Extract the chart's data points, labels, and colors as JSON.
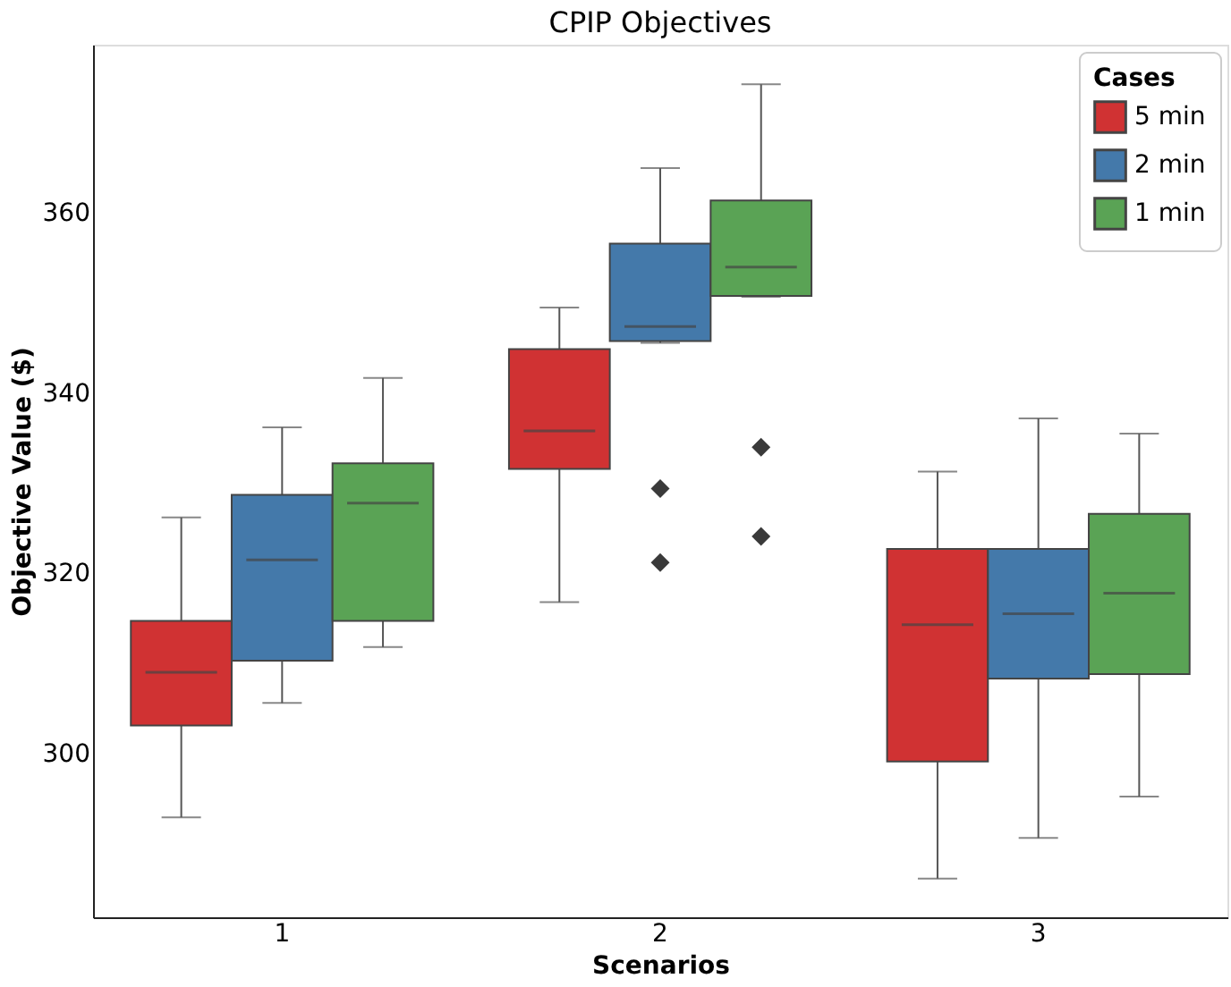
{
  "chart_data": {
    "type": "box",
    "title": "CPIP Objectives",
    "xlabel": "Scenarios",
    "ylabel": "Objective Value ($)",
    "legend_title": "Cases",
    "categories": [
      "1",
      "2",
      "3"
    ],
    "series": [
      {
        "name": "5 min",
        "color": "#d03233",
        "boxes": [
          {
            "low": 292.9,
            "q1": 303.1,
            "median": 309.0,
            "q3": 314.7,
            "high": 326.2
          },
          {
            "low": 316.8,
            "q1": 331.6,
            "median": 335.8,
            "q3": 344.9,
            "high": 349.5
          },
          {
            "low": 286.1,
            "q1": 299.1,
            "median": 314.3,
            "q3": 322.7,
            "high": 331.3
          }
        ]
      },
      {
        "name": "2 min",
        "color": "#4479aa",
        "boxes": [
          {
            "low": 305.6,
            "q1": 310.3,
            "median": 321.5,
            "q3": 328.7,
            "high": 336.2
          },
          {
            "low": 345.6,
            "q1": 345.8,
            "median": 347.4,
            "q3": 356.6,
            "high": 365.0,
            "outliers": [
              329.4,
              321.2
            ]
          },
          {
            "low": 290.6,
            "q1": 308.3,
            "median": 315.5,
            "q3": 322.7,
            "high": 337.2
          }
        ]
      },
      {
        "name": "1 min",
        "color": "#5aa355",
        "boxes": [
          {
            "low": 311.8,
            "q1": 314.7,
            "median": 327.8,
            "q3": 332.2,
            "high": 341.7
          },
          {
            "low": 350.7,
            "q1": 350.8,
            "median": 354.0,
            "q3": 361.4,
            "high": 374.3,
            "outliers": [
              334.0,
              324.1
            ]
          },
          {
            "low": 295.2,
            "q1": 308.8,
            "median": 317.8,
            "q3": 326.6,
            "high": 335.5
          }
        ]
      }
    ],
    "ylim": [
      281.8,
      378.7
    ],
    "yticks": [
      300,
      320,
      340,
      360
    ],
    "grid": false,
    "legend": "top right"
  }
}
